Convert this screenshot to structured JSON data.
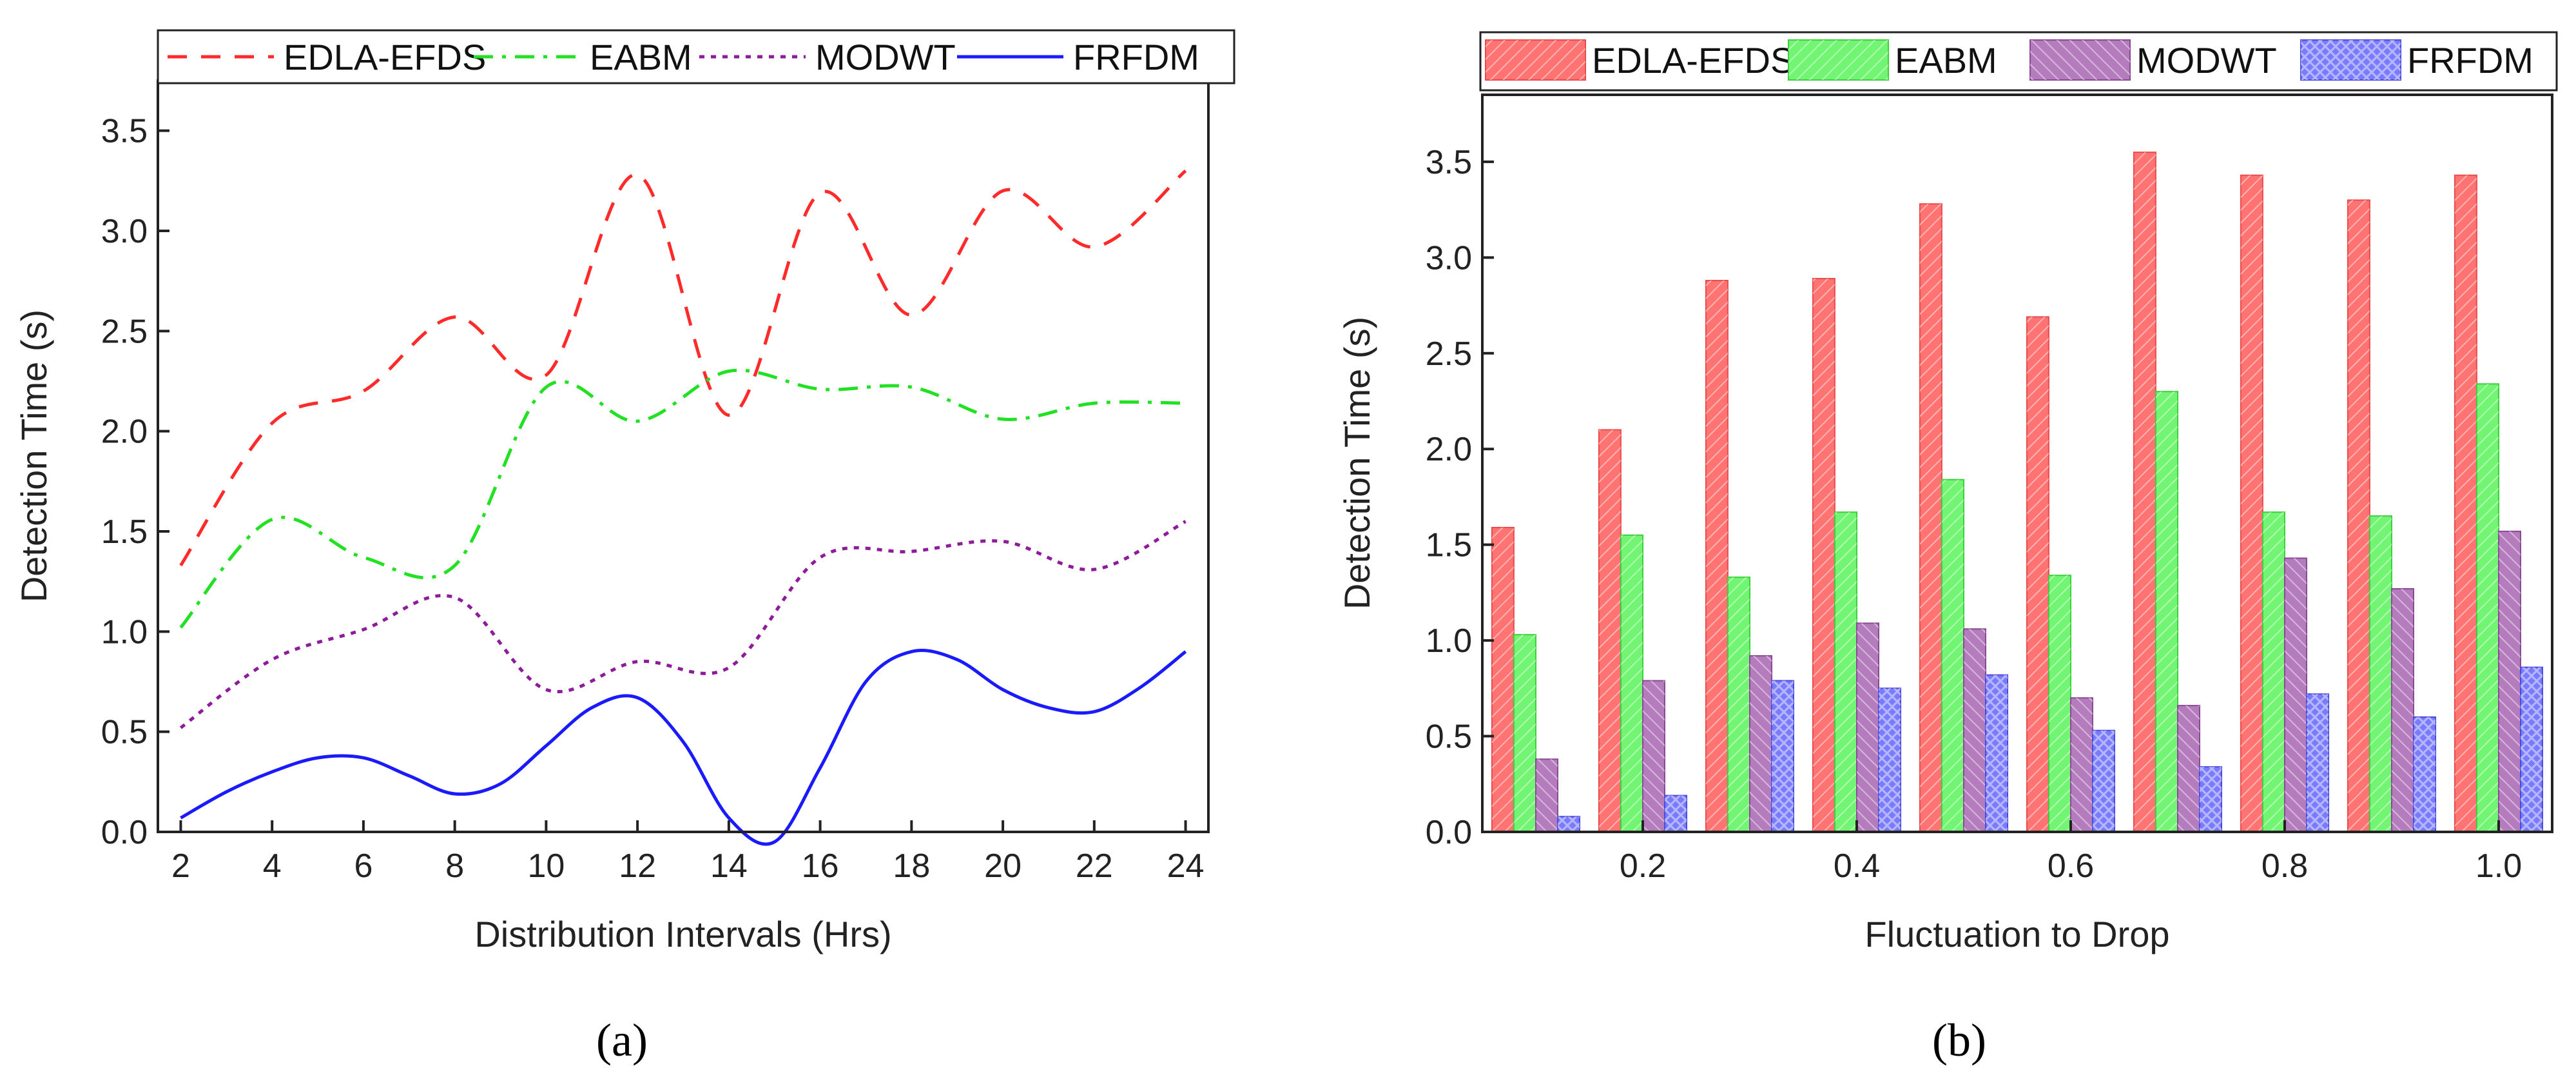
{
  "chart_data": [
    {
      "type": "line",
      "panel_label": "a",
      "xlabel": "Distribution Intervals (Hrs)",
      "ylabel": "Detection Time (s)",
      "xlim": [
        1.5,
        24.5
      ],
      "ylim": [
        0,
        3.75
      ],
      "xticks": [
        2,
        4,
        6,
        8,
        10,
        12,
        14,
        16,
        18,
        20,
        22,
        24
      ],
      "yticks": [
        0.0,
        0.5,
        1.0,
        1.5,
        2.0,
        2.5,
        3.0,
        3.5
      ],
      "grid": false,
      "legend_position": "top",
      "series": [
        {
          "name": "EDLA-EFDS",
          "color": "#ff2a2a",
          "dash": "dashed",
          "x": [
            2,
            4,
            6,
            8,
            10,
            12,
            14,
            16,
            18,
            20,
            22,
            24
          ],
          "y": [
            1.33,
            2.04,
            2.2,
            2.57,
            2.28,
            3.28,
            2.08,
            3.19,
            2.58,
            3.2,
            2.92,
            3.3
          ]
        },
        {
          "name": "EABM",
          "color": "#22e022",
          "dash": "dashdot",
          "x": [
            2,
            4,
            6,
            8,
            10,
            12,
            14,
            16,
            18,
            20,
            22,
            24
          ],
          "y": [
            1.02,
            1.56,
            1.37,
            1.33,
            2.22,
            2.05,
            2.3,
            2.21,
            2.22,
            2.06,
            2.14,
            2.14
          ]
        },
        {
          "name": "MODWT",
          "color": "#8e1b9b",
          "dash": "dotted",
          "x": [
            2,
            4,
            6,
            8,
            10,
            12,
            14,
            16,
            18,
            20,
            22,
            24
          ],
          "y": [
            0.52,
            0.86,
            1.01,
            1.17,
            0.71,
            0.85,
            0.82,
            1.37,
            1.4,
            1.45,
            1.31,
            1.55
          ]
        },
        {
          "name": "FRFDM",
          "color": "#1a1aff",
          "dash": "solid",
          "x": [
            2,
            3,
            4,
            5,
            6,
            7,
            8,
            9,
            10,
            11,
            12,
            13,
            14,
            15,
            16,
            17,
            18,
            19,
            20,
            21,
            22,
            23,
            24
          ],
          "y": [
            0.07,
            0.2,
            0.3,
            0.37,
            0.37,
            0.28,
            0.19,
            0.24,
            0.43,
            0.62,
            0.67,
            0.45,
            0.07,
            -0.05,
            0.32,
            0.75,
            0.9,
            0.86,
            0.71,
            0.62,
            0.6,
            0.72,
            0.9
          ]
        }
      ]
    },
    {
      "type": "bar",
      "panel_label": "b",
      "xlabel": "Fluctuation to Drop",
      "ylabel": "Detection Time (s)",
      "xlim": [
        0.05,
        1.05
      ],
      "ylim": [
        0,
        3.85
      ],
      "xticks": [
        "0.2",
        "0.4",
        "0.6",
        "0.8",
        "1.0"
      ],
      "xtick_values": [
        0.2,
        0.4,
        0.6,
        0.8,
        1.0
      ],
      "yticks": [
        0.0,
        0.5,
        1.0,
        1.5,
        2.0,
        2.5,
        3.0,
        3.5
      ],
      "grid": false,
      "legend_position": "top",
      "categories": [
        0.1,
        0.2,
        0.3,
        0.4,
        0.5,
        0.6,
        0.7,
        0.8,
        0.9,
        1.0
      ],
      "series": [
        {
          "name": "EDLA-EFDS",
          "color": "#ff7373",
          "values": [
            1.59,
            2.1,
            2.88,
            2.89,
            3.28,
            2.69,
            3.55,
            3.43,
            3.3,
            3.43
          ]
        },
        {
          "name": "EABM",
          "color": "#72f572",
          "values": [
            1.03,
            1.55,
            1.33,
            1.67,
            1.84,
            1.34,
            2.3,
            1.67,
            1.65,
            2.34
          ]
        },
        {
          "name": "MODWT",
          "color": "#b47cbd",
          "values": [
            0.38,
            0.79,
            0.92,
            1.09,
            1.06,
            0.7,
            0.66,
            1.43,
            1.27,
            1.57
          ]
        },
        {
          "name": "FRFDM",
          "color": "#7b7bff",
          "values": [
            0.08,
            0.19,
            0.79,
            0.75,
            0.82,
            0.53,
            0.34,
            0.72,
            0.6,
            0.86
          ]
        }
      ]
    }
  ],
  "captions": [
    "(a)",
    "(b)"
  ]
}
